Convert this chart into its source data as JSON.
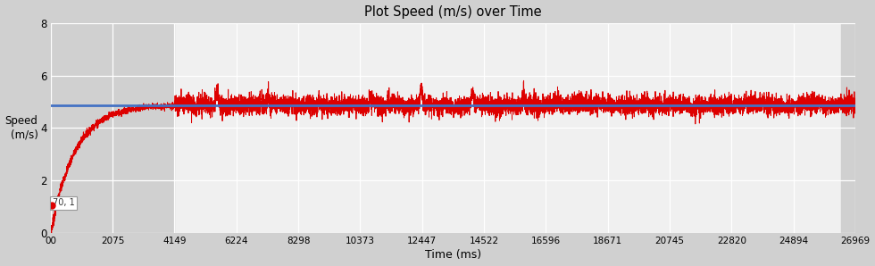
{
  "title": "Plot Speed (m/s) over Time",
  "xlabel": "Time (ms)",
  "ylabel": "Speed\n(m/s)",
  "xlim": [
    0,
    26969
  ],
  "ylim": [
    0,
    8
  ],
  "yticks": [
    0,
    2,
    4,
    6,
    8
  ],
  "xtick_labels": [
    "00",
    "2075",
    "4149",
    "6224",
    "8298",
    "10373",
    "12447",
    "14522",
    "16596",
    "18671",
    "20745",
    "22820",
    "24894",
    "26969"
  ],
  "xtick_values": [
    0,
    2075,
    4149,
    6224,
    8298,
    10373,
    12447,
    14522,
    16596,
    18671,
    20745,
    22820,
    24894,
    26969
  ],
  "avg_speed": 4.88,
  "avg_line_color": "#4472c4",
  "line_color": "#dd0000",
  "bg_color_outer": "#d0d0d0",
  "bg_color_inner": "#f0f0f0",
  "shaded_left_end": 4149,
  "shaded_right_start": 26500,
  "annotation_text": "70, 1",
  "ramp_end": 4149,
  "total_end": 26969,
  "dot_x": 20,
  "dot_y": 1.05,
  "seed": 7
}
